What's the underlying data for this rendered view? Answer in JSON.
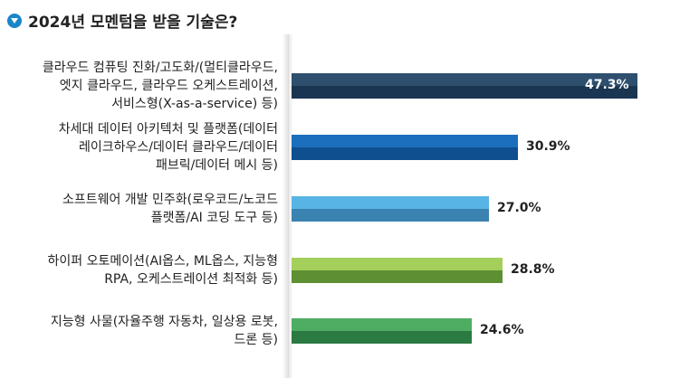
{
  "title": "2024년 모멘텀을 받을 기술은?",
  "chart_data": {
    "type": "bar",
    "orientation": "horizontal",
    "title": "2024년 모멘텀을 받을 기술은?",
    "xlim": [
      0,
      50
    ],
    "categories": [
      [
        "클라우드 컴퓨팅 진화/고도화/(멀티클라우드,",
        "엣지 클라우드, 클라우드 오케스트레이션,",
        "서비스형(X-as-a-service) 등)"
      ],
      [
        "차세대 데이터 아키텍처 및 플랫폼(데이터",
        "레이크하우스/데이터 클라우드/데이터",
        "패브릭/데이터 메시 등)"
      ],
      [
        "소프트웨어 개발 민주화(로우코드/노코드",
        "플랫폼/AI 코딩 도구 등)"
      ],
      [
        "하이퍼 오토메이션(AI옵스, ML옵스, 지능형",
        "RPA, 오케스트레이션 최적화 등)"
      ],
      [
        "지능형 사물(자율주행 자동차, 일상용 로봇,",
        "드론 등)"
      ]
    ],
    "values": [
      47.3,
      30.9,
      27.0,
      28.8,
      24.6
    ],
    "value_labels": [
      "47.3%",
      "30.9%",
      "27.0%",
      "28.8%",
      "24.6%"
    ],
    "colors": [
      {
        "top": "#2e4f6e",
        "bottom": "#1a3551"
      },
      {
        "top": "#1c6fbc",
        "bottom": "#0f4f8f"
      },
      {
        "top": "#58b4e4",
        "bottom": "#3a82b0"
      },
      {
        "top": "#a3cf5a",
        "bottom": "#5e8f33"
      },
      {
        "top": "#4fac63",
        "bottom": "#2b7a42"
      }
    ]
  }
}
